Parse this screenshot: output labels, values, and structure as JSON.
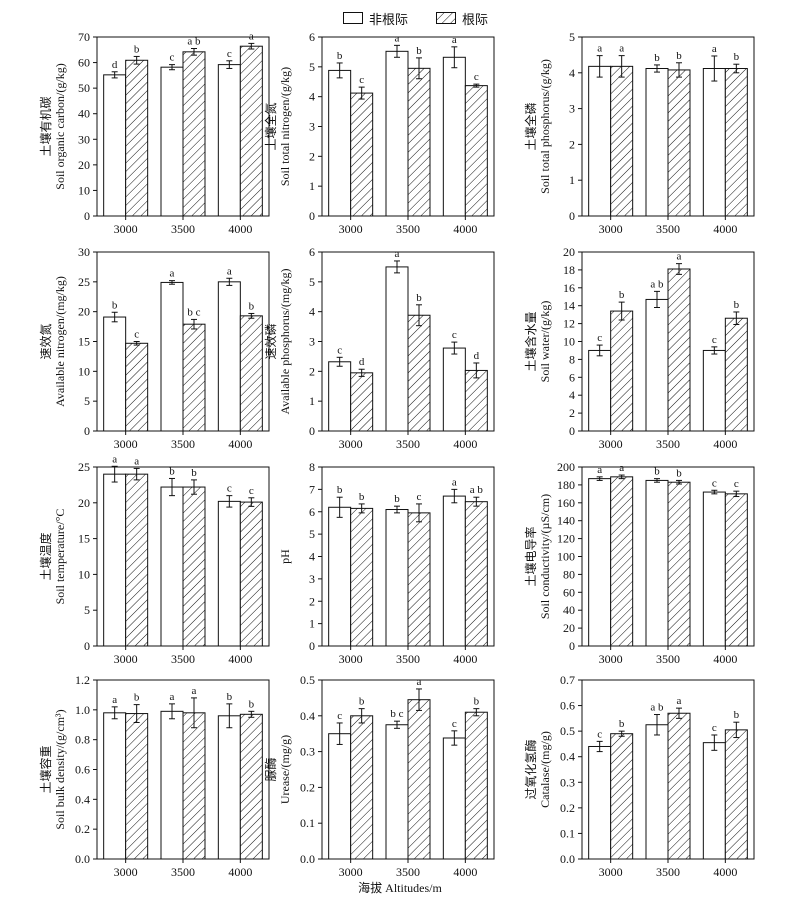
{
  "legend": {
    "non_rhizosphere": "非根际",
    "rhizosphere": "根际"
  },
  "x_title": "海拔 Altitudes/m",
  "colors": {
    "ink": "#111111",
    "fill": "#ffffff"
  },
  "chart_data": [
    {
      "type": "bar",
      "title": "",
      "ylabel_cn": "土壤有机碳",
      "ylabel_en": "Soil organic carbon/(g/kg)",
      "categories": [
        "3000",
        "3500",
        "4000"
      ],
      "ylim": [
        0,
        70
      ],
      "yticks": [
        0,
        10,
        20,
        30,
        40,
        50,
        60,
        70
      ],
      "series": [
        {
          "name": "非根际",
          "values": [
            55.2,
            58.2,
            59.2
          ],
          "errors": [
            1.2,
            1.0,
            1.5
          ],
          "letters": [
            "d",
            "c",
            "c"
          ]
        },
        {
          "name": "根际",
          "values": [
            60.9,
            64.2,
            66.4
          ],
          "errors": [
            1.5,
            1.3,
            1.1
          ],
          "letters": [
            "b",
            "a b",
            "a"
          ]
        }
      ]
    },
    {
      "type": "bar",
      "title": "",
      "ylabel_cn": "土壤全氮",
      "ylabel_en": "Soil total nitrogen/(g/kg)",
      "categories": [
        "3000",
        "3500",
        "4000"
      ],
      "ylim": [
        0,
        6
      ],
      "yticks": [
        0,
        1,
        2,
        3,
        4,
        5,
        6
      ],
      "series": [
        {
          "name": "非根际",
          "values": [
            4.88,
            5.52,
            5.32
          ],
          "errors": [
            0.25,
            0.2,
            0.35
          ],
          "letters": [
            "b",
            "a",
            "a"
          ]
        },
        {
          "name": "根际",
          "values": [
            4.12,
            4.95,
            4.37
          ],
          "errors": [
            0.2,
            0.35,
            0.05
          ],
          "letters": [
            "c",
            "b",
            "c"
          ]
        }
      ]
    },
    {
      "type": "bar",
      "title": "",
      "ylabel_cn": "土壤全磷",
      "ylabel_en": "Soil total phosphorus/(g/kg)",
      "categories": [
        "3000",
        "3500",
        "4000"
      ],
      "ylim": [
        0,
        5
      ],
      "yticks": [
        0,
        1,
        2,
        3,
        4,
        5
      ],
      "series": [
        {
          "name": "非根际",
          "values": [
            4.18,
            4.12,
            4.12
          ],
          "errors": [
            0.3,
            0.1,
            0.35
          ],
          "letters": [
            "a",
            "b",
            "a"
          ]
        },
        {
          "name": "根际",
          "values": [
            4.18,
            4.08,
            4.12
          ],
          "errors": [
            0.3,
            0.2,
            0.12
          ],
          "letters": [
            "a",
            "b",
            "b"
          ]
        }
      ]
    },
    {
      "type": "bar",
      "title": "",
      "ylabel_cn": "速效氮",
      "ylabel_en": "Available nitrogen/(mg/kg)",
      "categories": [
        "3000",
        "3500",
        "4000"
      ],
      "ylim": [
        0,
        30
      ],
      "yticks": [
        0,
        5,
        10,
        15,
        20,
        25,
        30
      ],
      "series": [
        {
          "name": "非根际",
          "values": [
            19.1,
            24.9,
            25.0
          ],
          "errors": [
            0.8,
            0.3,
            0.6
          ],
          "letters": [
            "b",
            "a",
            "a"
          ]
        },
        {
          "name": "根际",
          "values": [
            14.7,
            17.9,
            19.3
          ],
          "errors": [
            0.3,
            0.8,
            0.4
          ],
          "letters": [
            "c",
            "b c",
            "b"
          ]
        }
      ]
    },
    {
      "type": "bar",
      "title": "",
      "ylabel_cn": "速效磷",
      "ylabel_en": "Available phosphorus/(mg/kg)",
      "categories": [
        "3000",
        "3500",
        "4000"
      ],
      "ylim": [
        0,
        6
      ],
      "yticks": [
        0,
        1,
        2,
        3,
        4,
        5,
        6
      ],
      "series": [
        {
          "name": "非根际",
          "values": [
            2.32,
            5.5,
            2.78
          ],
          "errors": [
            0.15,
            0.2,
            0.2
          ],
          "letters": [
            "c",
            "a",
            "c"
          ]
        },
        {
          "name": "根际",
          "values": [
            1.95,
            3.88,
            2.03
          ],
          "errors": [
            0.12,
            0.35,
            0.25
          ],
          "letters": [
            "d",
            "b",
            "d"
          ]
        }
      ]
    },
    {
      "type": "bar",
      "title": "",
      "ylabel_cn": "土壤含水量",
      "ylabel_en": "Soil water/(g/kg)",
      "categories": [
        "3000",
        "3500",
        "4000"
      ],
      "ylim": [
        0,
        20
      ],
      "yticks": [
        0,
        2,
        4,
        6,
        8,
        10,
        12,
        14,
        16,
        18,
        20
      ],
      "series": [
        {
          "name": "非根际",
          "values": [
            9.0,
            14.7,
            9.0
          ],
          "errors": [
            0.6,
            0.9,
            0.4
          ],
          "letters": [
            "c",
            "a b",
            "c"
          ]
        },
        {
          "name": "根际",
          "values": [
            13.4,
            18.1,
            12.6
          ],
          "errors": [
            1.0,
            0.6,
            0.7
          ],
          "letters": [
            "b",
            "a",
            "b"
          ]
        }
      ]
    },
    {
      "type": "bar",
      "title": "",
      "ylabel_cn": "土壤温度",
      "ylabel_en": "Soil temperature/°C",
      "categories": [
        "3000",
        "3500",
        "4000"
      ],
      "ylim": [
        0,
        25
      ],
      "yticks": [
        0,
        5,
        10,
        15,
        20,
        25
      ],
      "series": [
        {
          "name": "非根际",
          "values": [
            24.0,
            22.2,
            20.2
          ],
          "errors": [
            1.1,
            1.2,
            0.8
          ],
          "letters": [
            "a",
            "b",
            "c"
          ]
        },
        {
          "name": "根际",
          "values": [
            24.0,
            22.2,
            20.1
          ],
          "errors": [
            0.8,
            1.0,
            0.6
          ],
          "letters": [
            "a",
            "b",
            "c"
          ]
        }
      ]
    },
    {
      "type": "bar",
      "title": "",
      "ylabel_cn": "",
      "ylabel_en": "pH",
      "categories": [
        "3000",
        "3500",
        "4000"
      ],
      "ylim": [
        0,
        8
      ],
      "yticks": [
        0,
        1,
        2,
        3,
        4,
        5,
        6,
        7,
        8
      ],
      "series": [
        {
          "name": "非根际",
          "values": [
            6.2,
            6.1,
            6.7
          ],
          "errors": [
            0.45,
            0.15,
            0.3
          ],
          "letters": [
            "b",
            "b",
            "a"
          ]
        },
        {
          "name": "根际",
          "values": [
            6.15,
            5.95,
            6.45
          ],
          "errors": [
            0.2,
            0.4,
            0.2
          ],
          "letters": [
            "b",
            "c",
            "a b"
          ]
        }
      ]
    },
    {
      "type": "bar",
      "title": "",
      "ylabel_cn": "土壤电导率",
      "ylabel_en": "Soil conductivity/(µS/cm)",
      "categories": [
        "3000",
        "3500",
        "4000"
      ],
      "ylim": [
        0,
        200
      ],
      "yticks": [
        0,
        20,
        40,
        60,
        80,
        100,
        120,
        140,
        160,
        180,
        200
      ],
      "series": [
        {
          "name": "非根际",
          "values": [
            187,
            185,
            172
          ],
          "errors": [
            2,
            2,
            2
          ],
          "letters": [
            "a",
            "b",
            "c"
          ]
        },
        {
          "name": "根际",
          "values": [
            189,
            183,
            170
          ],
          "errors": [
            2,
            2,
            3
          ],
          "letters": [
            "a",
            "b",
            "c"
          ]
        }
      ]
    },
    {
      "type": "bar",
      "title": "",
      "ylabel_cn": "土壤容重",
      "ylabel_en": "Soil bulk density/(g/cm³)",
      "categories": [
        "3000",
        "3500",
        "4000"
      ],
      "ylim": [
        0,
        1.2
      ],
      "yticks": [
        0,
        0.2,
        0.4,
        0.6,
        0.8,
        1.0,
        1.2
      ],
      "series": [
        {
          "name": "非根际",
          "values": [
            0.98,
            0.99,
            0.96
          ],
          "errors": [
            0.04,
            0.05,
            0.08
          ],
          "letters": [
            "a",
            "a",
            "b"
          ]
        },
        {
          "name": "根际",
          "values": [
            0.975,
            0.98,
            0.97
          ],
          "errors": [
            0.06,
            0.1,
            0.02
          ],
          "letters": [
            "b",
            "a",
            "b"
          ]
        }
      ]
    },
    {
      "type": "bar",
      "title": "",
      "ylabel_cn": "脲酶",
      "ylabel_en": "Urease/(mg/g)",
      "categories": [
        "3000",
        "3500",
        "4000"
      ],
      "ylim": [
        0,
        0.5
      ],
      "yticks": [
        0,
        0.1,
        0.2,
        0.3,
        0.4,
        0.5
      ],
      "series": [
        {
          "name": "非根际",
          "values": [
            0.35,
            0.375,
            0.338
          ],
          "errors": [
            0.03,
            0.01,
            0.02
          ],
          "letters": [
            "c",
            "b c",
            "c"
          ]
        },
        {
          "name": "根际",
          "values": [
            0.4,
            0.445,
            0.41
          ],
          "errors": [
            0.02,
            0.03,
            0.01
          ],
          "letters": [
            "b",
            "a",
            "b"
          ]
        }
      ]
    },
    {
      "type": "bar",
      "title": "",
      "ylabel_cn": "过氧化氢酶",
      "ylabel_en": "Catalase/(mg/g)",
      "categories": [
        "3000",
        "3500",
        "4000"
      ],
      "ylim": [
        0,
        0.7
      ],
      "yticks": [
        0,
        0.1,
        0.2,
        0.3,
        0.4,
        0.5,
        0.6,
        0.7
      ],
      "series": [
        {
          "name": "非根际",
          "values": [
            0.44,
            0.525,
            0.455
          ],
          "errors": [
            0.02,
            0.04,
            0.03
          ],
          "letters": [
            "c",
            "a b",
            "c"
          ]
        },
        {
          "name": "根际",
          "values": [
            0.49,
            0.57,
            0.505
          ],
          "errors": [
            0.01,
            0.02,
            0.03
          ],
          "letters": [
            "b",
            "a",
            "b"
          ]
        }
      ]
    }
  ]
}
